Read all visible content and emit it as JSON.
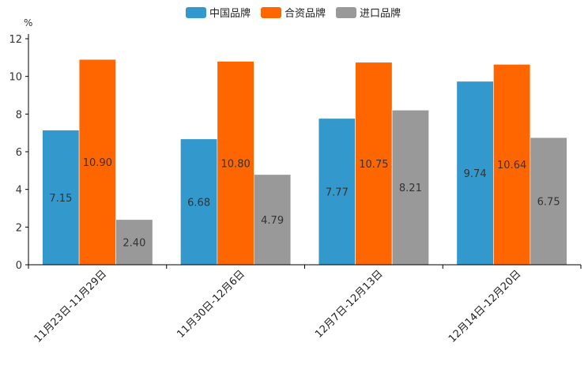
{
  "chart_data": {
    "type": "bar",
    "title": "",
    "xlabel": "",
    "ylabel": "%",
    "ylim": [
      0,
      12
    ],
    "yticks": [
      0,
      2,
      4,
      6,
      8,
      10,
      12
    ],
    "categories": [
      "11月23日-11月29日",
      "11月30日-12月6日",
      "12月7日-12月13日",
      "12月14日-12月20日"
    ],
    "series": [
      {
        "name": "中国品牌",
        "color": "#3399cc",
        "values": [
          7.15,
          6.68,
          7.77,
          9.74
        ],
        "labels": [
          "7.15",
          "6.68",
          "7.77",
          "9.74"
        ]
      },
      {
        "name": "合资品牌",
        "color": "#ff6600",
        "values": [
          10.9,
          10.8,
          10.75,
          10.64
        ],
        "labels": [
          "10.90",
          "10.80",
          "10.75",
          "10.64"
        ]
      },
      {
        "name": "进口品牌",
        "color": "#999999",
        "values": [
          2.4,
          4.79,
          8.21,
          6.75
        ],
        "labels": [
          "2.40",
          "4.79",
          "8.21",
          "6.75"
        ]
      }
    ],
    "legend_position": "top-center",
    "grid": false
  }
}
